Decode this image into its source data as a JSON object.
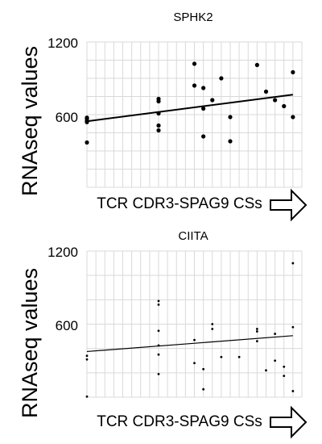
{
  "chart_data": [
    {
      "type": "scatter",
      "title": "SPHK2",
      "xlabel": "TCR CDR3-SPAG9 CSs",
      "ylabel": "RNAseq values",
      "ylim": [
        0,
        1200
      ],
      "yticks": [
        "600",
        "1200"
      ],
      "grid": true,
      "point_style": "large",
      "trendline": [
        [
          0,
          545
        ],
        [
          23,
          765
        ]
      ],
      "points": [
        [
          0,
          548
        ],
        [
          0,
          538
        ],
        [
          0,
          565
        ],
        [
          0,
          575
        ],
        [
          0,
          370
        ],
        [
          8,
          730
        ],
        [
          8,
          710
        ],
        [
          8,
          610
        ],
        [
          8,
          510
        ],
        [
          8,
          470
        ],
        [
          12,
          1020
        ],
        [
          12,
          840
        ],
        [
          13,
          420
        ],
        [
          13,
          650
        ],
        [
          13,
          820
        ],
        [
          14,
          720
        ],
        [
          15,
          900
        ],
        [
          16,
          580
        ],
        [
          16,
          380
        ],
        [
          19,
          1010
        ],
        [
          20,
          790
        ],
        [
          21,
          720
        ],
        [
          22,
          670
        ],
        [
          23,
          950
        ],
        [
          23,
          580
        ]
      ]
    },
    {
      "type": "scatter",
      "title": "CIITA",
      "xlabel": "TCR CDR3-SPAG9 CSs",
      "ylabel": "RNAseq values",
      "ylim": [
        0,
        1200
      ],
      "yticks": [
        "600",
        "1200"
      ],
      "grid": true,
      "point_style": "small",
      "trendline": [
        [
          0,
          375
        ],
        [
          23,
          505
        ]
      ],
      "points": [
        [
          0,
          340
        ],
        [
          0,
          310
        ],
        [
          0,
          5
        ],
        [
          8,
          790
        ],
        [
          8,
          760
        ],
        [
          8,
          545
        ],
        [
          8,
          425
        ],
        [
          8,
          350
        ],
        [
          8,
          190
        ],
        [
          12,
          470
        ],
        [
          12,
          280
        ],
        [
          13,
          230
        ],
        [
          13,
          65
        ],
        [
          14,
          600
        ],
        [
          14,
          560
        ],
        [
          15,
          330
        ],
        [
          17,
          330
        ],
        [
          19,
          560
        ],
        [
          19,
          540
        ],
        [
          19,
          460
        ],
        [
          20,
          220
        ],
        [
          21,
          300
        ],
        [
          21,
          520
        ],
        [
          22,
          250
        ],
        [
          22,
          175
        ],
        [
          23,
          1100
        ],
        [
          23,
          575
        ],
        [
          23,
          50
        ]
      ]
    }
  ]
}
